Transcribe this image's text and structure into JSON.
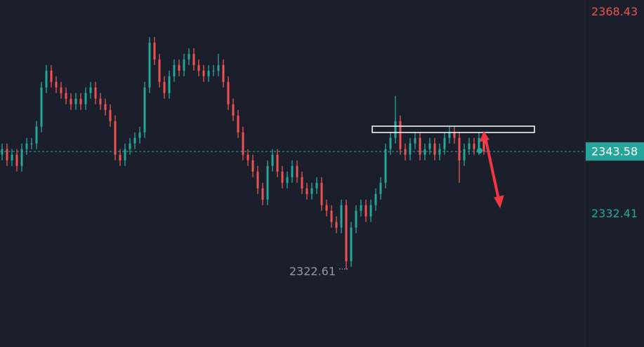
{
  "chart_data": {
    "type": "candlestick",
    "ylim": [
      2308.7,
      2370.6
    ],
    "colors": {
      "up": "#26a69a",
      "down": "#ef5350"
    },
    "price_labels": [
      2368.43,
      2343.58,
      2332.41
    ],
    "low_label": 2322.61,
    "open": [
      2343,
      2344,
      2342,
      2343,
      2341,
      2344,
      2345,
      2345,
      2348,
      2355,
      2358,
      2356,
      2355,
      2354,
      2353,
      2352,
      2353,
      2352,
      2354,
      2355,
      2353,
      2352,
      2351,
      2349,
      2343,
      2342,
      2344,
      2345,
      2346,
      2347,
      2355,
      2363,
      2360,
      2356,
      2354,
      2357,
      2359,
      2358,
      2360,
      2361,
      2359,
      2358,
      2357,
      2358,
      2358,
      2359,
      2356,
      2352,
      2350,
      2347,
      2343,
      2342,
      2340,
      2337,
      2335,
      2341,
      2343,
      2340,
      2338,
      2339,
      2341,
      2339,
      2337,
      2336,
      2337,
      2338,
      2334,
      2333,
      2331,
      2330,
      2334,
      2324,
      2330,
      2333,
      2334,
      2332,
      2334,
      2336,
      2338,
      2344,
      2346,
      2349,
      2344,
      2343,
      2345,
      2346,
      2343,
      2344,
      2345,
      2343,
      2344,
      2346,
      2347,
      2346,
      2342,
      2344,
      2345,
      2344,
      2346
    ],
    "high": [
      2345,
      2345,
      2344,
      2344,
      2345,
      2346,
      2346,
      2349,
      2356,
      2359,
      2359,
      2357,
      2356,
      2355,
      2354,
      2354,
      2354,
      2355,
      2356,
      2356,
      2354,
      2353,
      2352,
      2350,
      2344,
      2345,
      2346,
      2347,
      2348,
      2356,
      2364,
      2364,
      2361,
      2357,
      2358,
      2360,
      2360,
      2361,
      2362,
      2362,
      2360,
      2359,
      2359,
      2359,
      2361,
      2360,
      2357,
      2353,
      2351,
      2348,
      2344,
      2343,
      2341,
      2338,
      2342,
      2344,
      2344,
      2341,
      2340,
      2342,
      2342,
      2340,
      2338,
      2338,
      2339,
      2339,
      2335,
      2334,
      2332,
      2335,
      2335,
      2331,
      2334,
      2335,
      2335,
      2335,
      2337,
      2339,
      2345,
      2347,
      2353.5,
      2350,
      2345,
      2346,
      2347,
      2347,
      2345,
      2346,
      2346,
      2345,
      2347,
      2348,
      2348,
      2347,
      2345,
      2346,
      2346,
      2347,
      2347
    ],
    "low": [
      2342,
      2341,
      2341,
      2340,
      2340,
      2343,
      2344,
      2344,
      2347,
      2354,
      2355,
      2354,
      2353,
      2352,
      2351,
      2351,
      2351,
      2351,
      2353,
      2352,
      2351,
      2350,
      2348,
      2342,
      2341,
      2341,
      2343,
      2344,
      2345,
      2346,
      2354,
      2359,
      2355,
      2353,
      2353,
      2356,
      2357,
      2357,
      2359,
      2358,
      2357,
      2356,
      2356,
      2357,
      2357,
      2355,
      2351,
      2349,
      2346,
      2342,
      2341,
      2339,
      2336,
      2334,
      2334,
      2340,
      2339,
      2337,
      2337,
      2338,
      2338,
      2336,
      2335,
      2335,
      2336,
      2333,
      2332,
      2330,
      2329,
      2329,
      2322.61,
      2323,
      2329,
      2332,
      2331,
      2331,
      2333,
      2335,
      2337,
      2343,
      2345,
      2343,
      2342,
      2342,
      2344,
      2342,
      2342,
      2343,
      2342,
      2342,
      2343,
      2345,
      2345,
      2338,
      2341,
      2343,
      2343,
      2343,
      2343
    ],
    "close": [
      2344,
      2342,
      2343,
      2341,
      2344,
      2345,
      2345,
      2348,
      2355,
      2358,
      2356,
      2355,
      2354,
      2353,
      2352,
      2353,
      2352,
      2354,
      2355,
      2353,
      2352,
      2351,
      2349,
      2343,
      2342,
      2344,
      2345,
      2346,
      2347,
      2355,
      2363,
      2360,
      2356,
      2354,
      2357,
      2359,
      2358,
      2360,
      2361,
      2359,
      2358,
      2357,
      2358,
      2358,
      2359,
      2356,
      2352,
      2350,
      2347,
      2343,
      2342,
      2340,
      2337,
      2335,
      2341,
      2343,
      2340,
      2338,
      2339,
      2341,
      2339,
      2337,
      2336,
      2337,
      2338,
      2334,
      2333,
      2331,
      2330,
      2334,
      2324,
      2330,
      2333,
      2334,
      2332,
      2334,
      2336,
      2338,
      2344,
      2346,
      2349,
      2344,
      2343,
      2345,
      2346,
      2343,
      2344,
      2345,
      2343,
      2344,
      2346,
      2347,
      2346,
      2342,
      2344,
      2345,
      2344,
      2346,
      2343.58
    ]
  }
}
